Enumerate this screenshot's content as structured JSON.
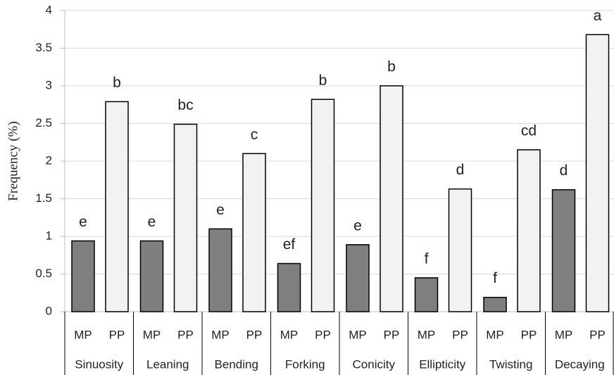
{
  "chart_data": {
    "type": "bar",
    "ylabel": "Frequency (%)",
    "categories": [
      "Sinuosity",
      "Leaning",
      "Bending",
      "Forking",
      "Conicity",
      "Ellipticity",
      "Twisting",
      "Decaying"
    ],
    "series": [
      {
        "name": "MP",
        "color": "#7f7f7f",
        "values": [
          0.94,
          0.94,
          1.1,
          0.64,
          0.89,
          0.45,
          0.19,
          1.62
        ],
        "labels": [
          "e",
          "e",
          "e",
          "ef",
          "e",
          "f",
          "f",
          "d"
        ]
      },
      {
        "name": "PP",
        "color": "#f2f2f2",
        "values": [
          2.79,
          2.49,
          2.1,
          2.82,
          3.0,
          1.63,
          2.15,
          3.68
        ],
        "labels": [
          "b",
          "bc",
          "c",
          "b",
          "b",
          "d",
          "cd",
          "a"
        ]
      }
    ],
    "ylim": [
      0,
      4
    ],
    "yticks": [
      0,
      0.5,
      1,
      1.5,
      2,
      2.5,
      3,
      3.5,
      4
    ],
    "grid": true
  }
}
